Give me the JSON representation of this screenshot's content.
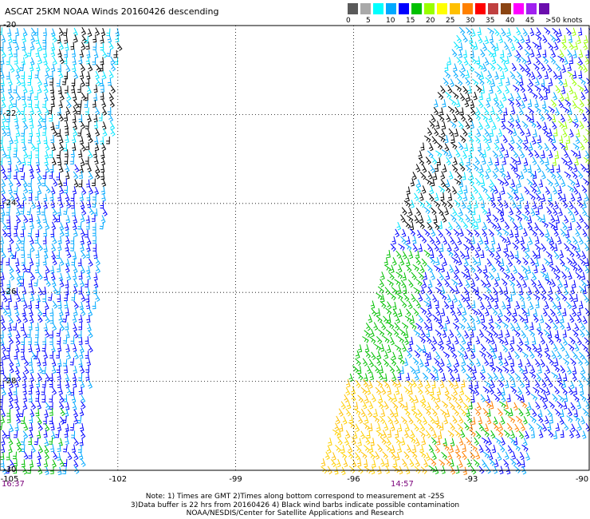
{
  "title": "ASCAT 25KM NOAA Winds 20160426 descending",
  "legend": {
    "labels": [
      "0",
      "5",
      "10",
      "15",
      "20",
      "25",
      "30",
      "35",
      "40",
      "45",
      ">50 knots"
    ],
    "colors": [
      "#5a5a5a",
      "#a9a9a9",
      "#00ffff",
      "#00a8ff",
      "#0000ff",
      "#00c000",
      "#99ff00",
      "#ffff00",
      "#ffc000",
      "#ff8000",
      "#ff0000",
      "#c04040",
      "#8b4513",
      "#ff00ff",
      "#a020f0",
      "#6a0dad"
    ]
  },
  "axes": {
    "x_ticks": [
      "-105",
      "-102",
      "-99",
      "-96",
      "-93",
      "-90"
    ],
    "y_ticks": [
      "-20",
      "-22",
      "-24",
      "-26",
      "-28",
      "-30"
    ],
    "times": [
      "16:37",
      "14:57"
    ]
  },
  "notes": [
    "Note: 1) Times are GMT 2)Times along bottom correspond to measurement at -25S",
    "3)Data buffer is 22 hrs from 20160426 4) Black wind barbs indicate possible contamination",
    "NOAA/NESDIS/Center for Satellite Applications and Research"
  ],
  "swaths": [
    {
      "name": "west-swath",
      "lon_range": [
        -105,
        -102.4
      ]
    },
    {
      "name": "east-swath",
      "lon_range": [
        -96.2,
        -90
      ]
    }
  ]
}
